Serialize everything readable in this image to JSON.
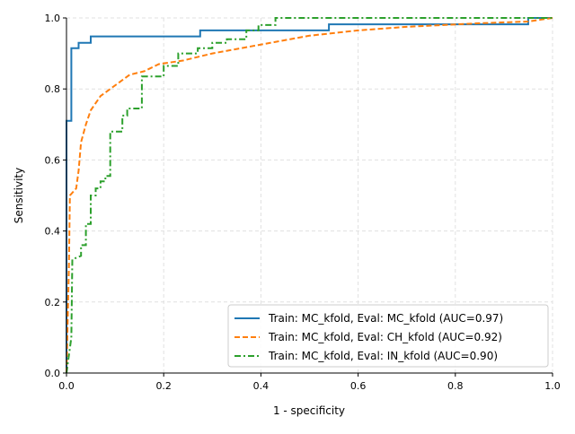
{
  "chart_data": {
    "type": "line",
    "title": "",
    "xlabel": "1 - specificity",
    "ylabel": "Sensitivity",
    "xlim": [
      0,
      1
    ],
    "ylim": [
      0,
      1
    ],
    "xticks": [
      "0.0",
      "0.2",
      "0.4",
      "0.6",
      "0.8",
      "1.0"
    ],
    "yticks": [
      "0.0",
      "0.2",
      "0.4",
      "0.6",
      "0.8",
      "1.0"
    ],
    "grid": true,
    "legend_position": "bottom-right",
    "series": [
      {
        "name": "Train: MC_kfold, Eval: MC_kfold (AUC=0.97)",
        "color": "#1f77b4",
        "style": "solid",
        "x": [
          0,
          0,
          0.01,
          0.01,
          0.025,
          0.025,
          0.05,
          0.05,
          0.275,
          0.275,
          0.54,
          0.54,
          0.95,
          0.95,
          1
        ],
        "y": [
          0,
          0.71,
          0.71,
          0.915,
          0.915,
          0.93,
          0.93,
          0.948,
          0.948,
          0.965,
          0.965,
          0.982,
          0.982,
          1,
          1
        ]
      },
      {
        "name": "Train: MC_kfold, Eval: CH_kfold (AUC=0.92)",
        "color": "#ff7f0e",
        "style": "dashed",
        "x": [
          0,
          0.005,
          0.007,
          0.02,
          0.025,
          0.03,
          0.04,
          0.05,
          0.07,
          0.09,
          0.11,
          0.13,
          0.16,
          0.19,
          0.24,
          0.3,
          0.38,
          0.5,
          0.6,
          0.7,
          0.85,
          0.95,
          1
        ],
        "y": [
          0,
          0.3,
          0.5,
          0.52,
          0.57,
          0.65,
          0.7,
          0.74,
          0.78,
          0.8,
          0.82,
          0.84,
          0.85,
          0.87,
          0.88,
          0.9,
          0.92,
          0.95,
          0.965,
          0.975,
          0.985,
          0.99,
          1
        ]
      },
      {
        "name": "Train: MC_kfold, Eval: IN_kfold (AUC=0.90)",
        "color": "#2ca02c",
        "style": "dashdot",
        "x": [
          0,
          0.005,
          0.01,
          0.012,
          0.03,
          0.03,
          0.04,
          0.04,
          0.05,
          0.05,
          0.06,
          0.06,
          0.07,
          0.07,
          0.08,
          0.08,
          0.09,
          0.09,
          0.115,
          0.115,
          0.125,
          0.125,
          0.155,
          0.155,
          0.2,
          0.2,
          0.23,
          0.23,
          0.27,
          0.27,
          0.3,
          0.3,
          0.33,
          0.33,
          0.37,
          0.37,
          0.395,
          0.395,
          0.43,
          0.43,
          1
        ],
        "y": [
          0,
          0.05,
          0.1,
          0.32,
          0.33,
          0.36,
          0.36,
          0.42,
          0.42,
          0.5,
          0.5,
          0.52,
          0.52,
          0.54,
          0.54,
          0.555,
          0.555,
          0.68,
          0.68,
          0.725,
          0.725,
          0.745,
          0.745,
          0.835,
          0.835,
          0.865,
          0.865,
          0.9,
          0.9,
          0.915,
          0.915,
          0.93,
          0.93,
          0.94,
          0.94,
          0.965,
          0.965,
          0.98,
          0.98,
          1,
          1
        ]
      }
    ]
  }
}
